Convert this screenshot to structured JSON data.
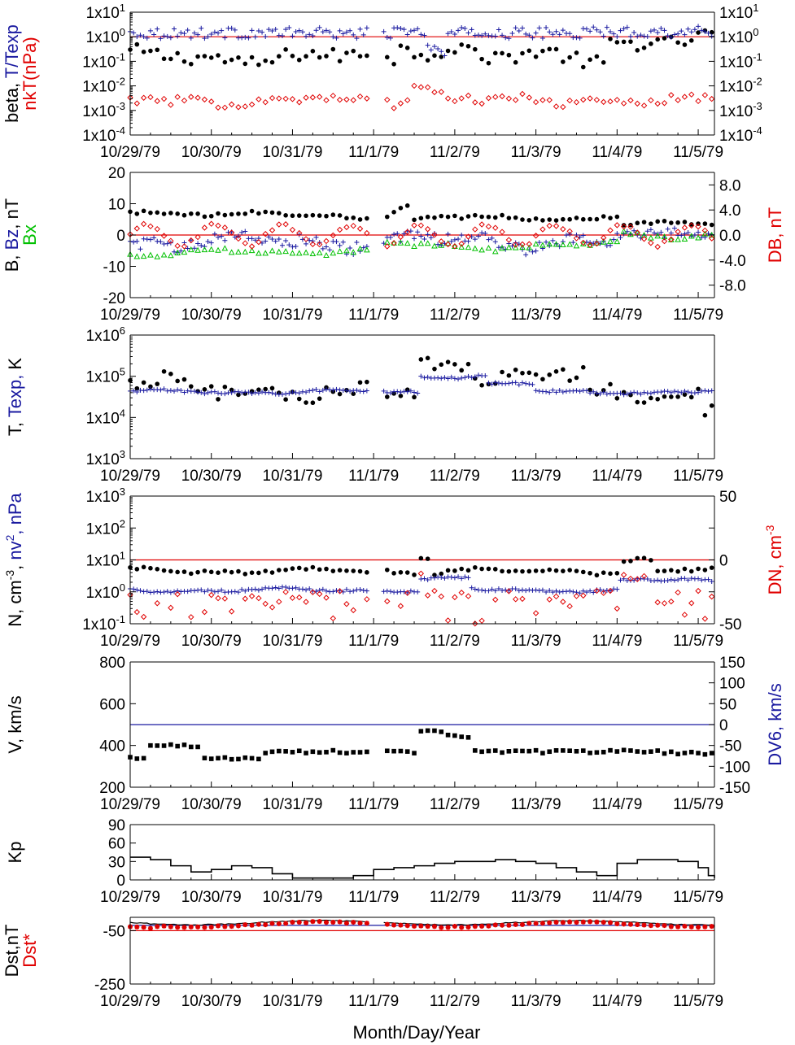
{
  "x_axis": {
    "title": "Month/Day/Year",
    "tick_labels": [
      "10/29/79",
      "10/30/79",
      "10/31/79",
      "11/1/79",
      "11/2/79",
      "11/3/79",
      "11/4/79",
      "11/5/79"
    ],
    "range_days": [
      0,
      7.2
    ]
  },
  "colors": {
    "black": "#000000",
    "blue": "#1a1aa0",
    "red": "#e00000",
    "green": "#00c000"
  },
  "chart_data": [
    {
      "id": "beta",
      "type": "scatter",
      "y_scale": "log",
      "ylim": [
        0.0001,
        10
      ],
      "left_label": [
        {
          "text": "beta, ",
          "color": "black"
        },
        {
          "text": "T/Texp",
          "color": "blue"
        }
      ],
      "left_label2": [
        {
          "text": "nkT(nPa)",
          "color": "red"
        }
      ],
      "left_ticks": [
        "1x10^1",
        "1x10^0",
        "1x10^-1",
        "1x10^-2",
        "1x10^-3",
        "1x10^-4"
      ],
      "right_ticks": [
        "1x10^1",
        "1x10^0",
        "1x10^-1",
        "1x10^-2",
        "1x10^-3",
        "1x10^-4"
      ],
      "ref_line": {
        "y": 1,
        "color": "red"
      },
      "series": [
        {
          "color": "black",
          "marker": "dot",
          "fn": "beta"
        },
        {
          "color": "blue",
          "marker": "plus",
          "fn": "ttexp"
        },
        {
          "color": "red",
          "marker": "diamond",
          "fn": "nkt"
        }
      ]
    },
    {
      "id": "imf",
      "type": "scatter",
      "y_scale": "linear",
      "ylim": [
        -20,
        20
      ],
      "left_label": [
        {
          "text": "B, ",
          "color": "black"
        },
        {
          "text": "Bz",
          "color": "blue"
        },
        {
          "text": ", nT",
          "color": "black"
        }
      ],
      "left_label2": [
        {
          "text": "Bx",
          "color": "green"
        }
      ],
      "right_label": [
        {
          "text": "DB, nT",
          "color": "red"
        }
      ],
      "left_ticks": [
        "20",
        "10",
        "0",
        "-10",
        "-20"
      ],
      "right_ticks": [
        "8.0",
        "4.0",
        "0.0",
        "-4.0",
        "-8.0"
      ],
      "right_lim": [
        -10,
        10
      ],
      "ref_line": {
        "y": 0,
        "color": "red"
      },
      "series": [
        {
          "color": "black",
          "marker": "dot",
          "fn": "bmag"
        },
        {
          "color": "blue",
          "marker": "plus",
          "fn": "bz"
        },
        {
          "color": "green",
          "marker": "triangle",
          "fn": "bx"
        },
        {
          "color": "red",
          "marker": "diamond",
          "fn": "db"
        }
      ]
    },
    {
      "id": "temp",
      "type": "scatter",
      "y_scale": "log",
      "ylim": [
        1000,
        1000000
      ],
      "left_label": [
        {
          "text": "T, ",
          "color": "black"
        },
        {
          "text": "Texp, ",
          "color": "blue"
        },
        {
          "text": "K",
          "color": "black"
        }
      ],
      "left_ticks": [
        "1x10^6",
        "1x10^5",
        "1x10^4",
        "1x10^3"
      ],
      "series": [
        {
          "color": "black",
          "marker": "dot",
          "fn": "temp"
        },
        {
          "color": "blue",
          "marker": "plus",
          "fn": "texp"
        }
      ]
    },
    {
      "id": "dens",
      "type": "scatter",
      "y_scale": "log",
      "ylim": [
        0.1,
        1000
      ],
      "left_label": [
        {
          "text": "N, cm",
          "color": "black"
        },
        {
          "text": "-3",
          "color": "black",
          "sup": true
        },
        {
          "text": ", ",
          "color": "black"
        },
        {
          "text": "nv",
          "color": "blue"
        },
        {
          "text": "2",
          "color": "blue",
          "sup": true
        },
        {
          "text": ", nPa",
          "color": "blue"
        }
      ],
      "right_label": [
        {
          "text": "DN, cm",
          "color": "red"
        },
        {
          "text": "-3",
          "color": "red",
          "sup": true
        }
      ],
      "left_ticks": [
        "1x10^3",
        "1x10^2",
        "1x10^1",
        "1x10^0",
        "1x10^-1"
      ],
      "right_ticks": [
        "50",
        "0",
        "-50"
      ],
      "right_lim": [
        -50,
        50
      ],
      "ref_line": {
        "y": 10,
        "color": "red"
      },
      "series": [
        {
          "color": "black",
          "marker": "dot",
          "fn": "ndens"
        },
        {
          "color": "blue",
          "marker": "plus",
          "fn": "pdyn"
        },
        {
          "color": "red",
          "marker": "diamond",
          "fn": "dn"
        }
      ]
    },
    {
      "id": "speed",
      "type": "scatter",
      "y_scale": "linear",
      "ylim": [
        200,
        800
      ],
      "left_label": [
        {
          "text": "V, km/s",
          "color": "black"
        }
      ],
      "right_label": [
        {
          "text": "DV6, km/s",
          "color": "blue"
        }
      ],
      "left_ticks": [
        "800",
        "600",
        "400",
        "200"
      ],
      "right_ticks": [
        "150",
        "100",
        "50",
        "0",
        "-50",
        "-100",
        "-150"
      ],
      "right_lim": [
        -150,
        150
      ],
      "ref_line": {
        "y": 500,
        "color": "blue"
      },
      "series": [
        {
          "color": "black",
          "marker": "square",
          "fn": "vel"
        },
        {
          "color": "blue",
          "marker": "plus",
          "fn": "dv6"
        }
      ]
    },
    {
      "id": "kp",
      "type": "line",
      "y_scale": "linear",
      "ylim": [
        0,
        90
      ],
      "left_label": [
        {
          "text": "Kp",
          "color": "black"
        }
      ],
      "left_ticks": [
        "90",
        "60",
        "30",
        "0"
      ],
      "steps": [
        [
          0,
          37
        ],
        [
          0.125,
          37
        ],
        [
          0.25,
          33
        ],
        [
          0.375,
          33
        ],
        [
          0.5,
          23
        ],
        [
          0.75,
          13
        ],
        [
          1.0,
          17
        ],
        [
          1.25,
          23
        ],
        [
          1.5,
          20
        ],
        [
          1.75,
          10
        ],
        [
          2.0,
          3
        ],
        [
          2.25,
          3
        ],
        [
          2.5,
          3
        ],
        [
          2.75,
          7
        ],
        [
          3.0,
          17
        ],
        [
          3.25,
          20
        ],
        [
          3.5,
          23
        ],
        [
          3.75,
          27
        ],
        [
          4.0,
          30
        ],
        [
          4.25,
          30
        ],
        [
          4.5,
          33
        ],
        [
          4.75,
          30
        ],
        [
          5.0,
          27
        ],
        [
          5.25,
          20
        ],
        [
          5.5,
          13
        ],
        [
          5.75,
          7
        ],
        [
          6.0,
          27
        ],
        [
          6.25,
          33
        ],
        [
          6.5,
          33
        ],
        [
          6.75,
          30
        ],
        [
          7.0,
          20
        ],
        [
          7.125,
          7
        ],
        [
          7.2,
          3
        ]
      ]
    },
    {
      "id": "dst",
      "type": "scatter",
      "y_scale": "linear",
      "ylim": [
        -250,
        0
      ],
      "left_label": [
        {
          "text": "Dst,nT",
          "color": "black"
        }
      ],
      "left_label2": [
        {
          "text": "Dst*",
          "color": "red"
        }
      ],
      "left_ticks": [
        "-50",
        "-250"
      ],
      "ref_lines": [
        {
          "y": -50,
          "color": "red"
        },
        {
          "y": -30,
          "color": "blue"
        }
      ],
      "series": [
        {
          "color": "black",
          "marker": "line",
          "fn": "dst"
        },
        {
          "color": "red",
          "marker": "star",
          "fn": "dststar"
        }
      ]
    }
  ]
}
